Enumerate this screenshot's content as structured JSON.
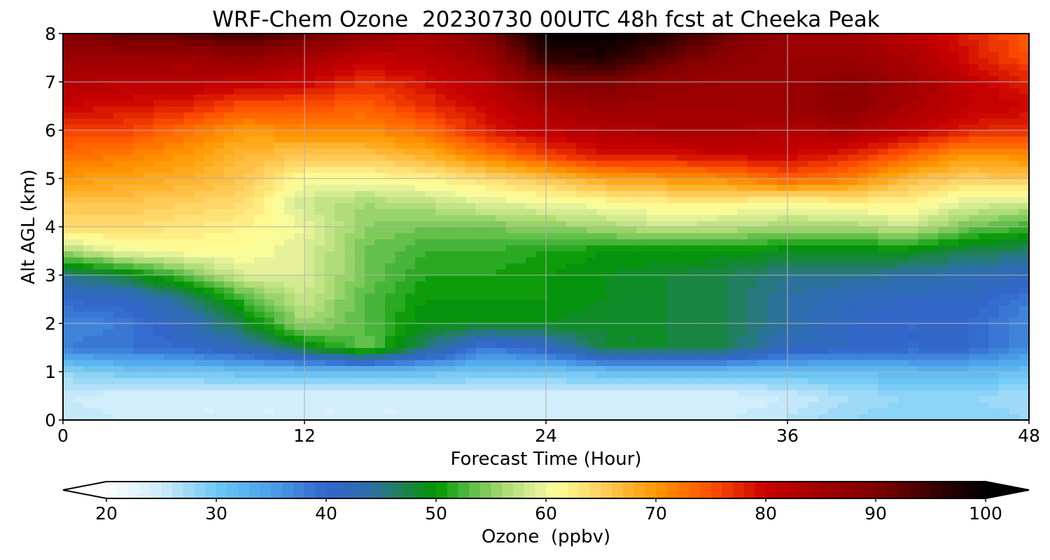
{
  "chart_data": {
    "type": "heatmap",
    "title": "WRF-Chem Ozone  20230730 00UTC 48h fcst at Cheeka Peak",
    "xlabel": "Forecast Time (Hour)",
    "ylabel": "Alt AGL (km)",
    "xlim": [
      0,
      48
    ],
    "ylim": [
      0,
      8
    ],
    "xticks": [
      0,
      12,
      24,
      36,
      48
    ],
    "yticks": [
      0,
      1,
      2,
      3,
      4,
      5,
      6,
      7,
      8
    ],
    "grid": true,
    "x": [
      0,
      3,
      6,
      9,
      12,
      15,
      18,
      21,
      24,
      27,
      30,
      33,
      36,
      39,
      42,
      45,
      48
    ],
    "y": [
      0,
      0.5,
      1,
      1.5,
      2,
      2.5,
      3,
      3.5,
      4,
      4.5,
      5,
      5.5,
      6,
      6.5,
      7,
      7.5,
      8
    ],
    "z": [
      [
        26,
        25,
        24,
        24,
        24,
        24,
        24,
        25,
        25,
        25,
        25,
        25,
        26,
        28,
        29,
        29,
        28
      ],
      [
        25,
        24,
        24,
        24,
        24,
        24,
        24,
        24,
        24,
        24,
        24,
        24,
        25,
        27,
        28,
        28,
        27
      ],
      [
        28,
        30,
        30,
        31,
        31,
        31,
        31,
        30,
        30,
        31,
        31,
        31,
        31,
        31,
        32,
        32,
        31
      ],
      [
        38,
        39,
        40,
        43,
        48,
        54,
        46,
        38,
        41,
        48,
        48,
        47,
        42,
        41,
        40,
        40,
        37
      ],
      [
        37,
        38,
        42,
        48,
        56,
        53,
        49,
        49,
        49,
        48,
        48,
        47,
        44,
        41,
        40,
        40,
        37
      ],
      [
        40,
        41,
        45,
        52,
        58,
        53,
        50,
        50,
        50,
        49,
        48,
        47,
        44,
        42,
        41,
        41,
        38
      ],
      [
        45,
        48,
        53,
        59,
        59,
        54,
        51,
        51,
        50,
        49,
        48,
        47,
        45,
        45,
        44,
        43,
        42
      ],
      [
        56,
        60,
        61,
        61,
        59,
        54,
        52,
        52,
        51,
        50,
        50,
        50,
        49,
        49,
        49,
        47,
        46
      ],
      [
        64,
        64,
        63,
        62,
        60,
        55,
        54,
        54,
        55,
        56,
        58,
        57,
        56,
        56,
        58,
        54,
        52
      ],
      [
        66,
        66,
        65,
        64,
        58,
        56,
        57,
        59,
        60,
        61,
        62,
        62,
        61,
        62,
        62,
        59,
        58
      ],
      [
        70,
        69,
        68,
        66,
        61,
        61,
        62,
        64,
        66,
        69,
        70,
        71,
        74,
        72,
        67,
        65,
        66
      ],
      [
        73,
        72,
        70,
        67,
        66,
        66,
        68,
        72,
        76,
        79,
        79,
        80,
        80,
        78,
        74,
        70,
        71
      ],
      [
        76,
        76,
        73,
        70,
        71,
        71,
        73,
        78,
        81,
        83,
        84,
        84,
        83,
        84,
        81,
        78,
        77
      ],
      [
        80,
        79,
        78,
        75,
        75,
        74,
        77,
        80,
        84,
        86,
        85,
        85,
        86,
        88,
        84,
        81,
        80
      ],
      [
        83,
        82,
        82,
        81,
        80,
        77,
        79,
        82,
        89,
        90,
        87,
        86,
        86,
        88,
        85,
        81,
        78
      ],
      [
        86,
        86,
        85,
        87,
        84,
        81,
        82,
        85,
        96,
        97,
        92,
        88,
        86,
        86,
        84,
        79,
        75
      ],
      [
        89,
        92,
        93,
        95,
        92,
        87,
        84,
        89,
        100,
        100,
        97,
        91,
        86,
        85,
        82,
        78,
        74
      ]
    ],
    "colorbar": {
      "label": "Ozone  (ppbv)",
      "min": 20,
      "max": 100,
      "ticks": [
        20,
        30,
        40,
        50,
        60,
        70,
        80,
        90,
        100
      ],
      "extend": "both",
      "stops": [
        {
          "value": 20,
          "color": "#ffffff"
        },
        {
          "value": 25,
          "color": "#cdebfa"
        },
        {
          "value": 30,
          "color": "#6ec8f5"
        },
        {
          "value": 35,
          "color": "#4aa0ea"
        },
        {
          "value": 40,
          "color": "#3366cc"
        },
        {
          "value": 44,
          "color": "#2d6faa"
        },
        {
          "value": 47,
          "color": "#1e8250"
        },
        {
          "value": 50,
          "color": "#009600"
        },
        {
          "value": 53,
          "color": "#55bb44"
        },
        {
          "value": 56,
          "color": "#a7d970"
        },
        {
          "value": 59,
          "color": "#ddee99"
        },
        {
          "value": 61,
          "color": "#ffff99"
        },
        {
          "value": 65,
          "color": "#ffd060"
        },
        {
          "value": 70,
          "color": "#ff9800"
        },
        {
          "value": 75,
          "color": "#ff5000"
        },
        {
          "value": 80,
          "color": "#c80000"
        },
        {
          "value": 85,
          "color": "#a00000"
        },
        {
          "value": 90,
          "color": "#800000"
        },
        {
          "value": 95,
          "color": "#3c0000"
        },
        {
          "value": 100,
          "color": "#000000"
        }
      ]
    }
  }
}
